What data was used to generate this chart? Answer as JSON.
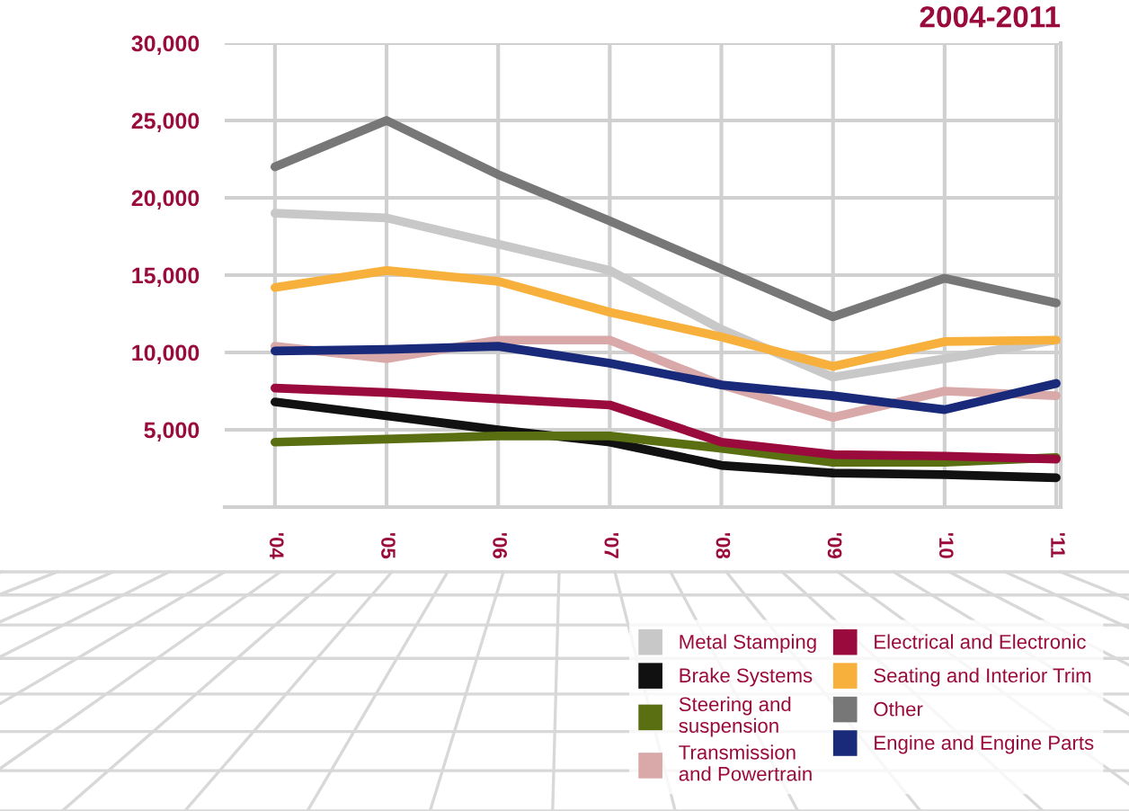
{
  "chart_data": {
    "type": "line",
    "title": "2004-2011",
    "categories": [
      "'04",
      "'05",
      "'06",
      "'07",
      "'08",
      "'09",
      "'10",
      "'11"
    ],
    "series": [
      {
        "name": "Metal Stamping",
        "color": "#c8c8c8",
        "values": [
          19000,
          18700,
          17000,
          15300,
          11500,
          8400,
          9600,
          10800
        ]
      },
      {
        "name": "Brake Systems",
        "color": "#111111",
        "values": [
          6800,
          5900,
          5000,
          4200,
          2700,
          2200,
          2100,
          1900
        ]
      },
      {
        "name": "Steering and\nsuspension",
        "color": "#5a6e12",
        "values": [
          4200,
          4400,
          4600,
          4600,
          3800,
          2900,
          2900,
          3200
        ]
      },
      {
        "name": "Transmission\nand Powertrain",
        "color": "#d9a8a8",
        "values": [
          10400,
          9600,
          10800,
          10800,
          7900,
          5800,
          7500,
          7200
        ]
      },
      {
        "name": "Electrical and Electronic",
        "color": "#9b0a3c",
        "values": [
          7700,
          7400,
          7000,
          6600,
          4200,
          3400,
          3300,
          3100
        ]
      },
      {
        "name": "Seating and Interior Trim",
        "color": "#f8b03c",
        "values": [
          14200,
          15300,
          14600,
          12600,
          11000,
          9100,
          10700,
          10800
        ]
      },
      {
        "name": "Other",
        "color": "#777777",
        "values": [
          22000,
          25000,
          21500,
          18500,
          15400,
          12300,
          14800,
          13200
        ]
      },
      {
        "name": "Engine and Engine Parts",
        "color": "#1a2a7a",
        "values": [
          10100,
          10200,
          10400,
          9300,
          7900,
          7200,
          6300,
          8000
        ]
      }
    ],
    "ylim": [
      0,
      30000
    ],
    "yticks": [
      {
        "value": 5000,
        "label": "5,000"
      },
      {
        "value": 10000,
        "label": "10,000"
      },
      {
        "value": 15000,
        "label": "15,000"
      },
      {
        "value": 20000,
        "label": "20,000"
      },
      {
        "value": 25000,
        "label": "25,000"
      },
      {
        "value": 30000,
        "label": "30,000"
      }
    ],
    "grid": true,
    "legend": "bottom right",
    "marker": "none",
    "line_style": "solid"
  }
}
